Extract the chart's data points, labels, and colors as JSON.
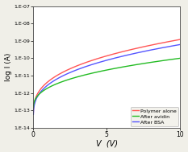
{
  "title": "",
  "xlabel": "V  (V)",
  "ylabel": "log I (A)",
  "xlim": [
    0,
    10
  ],
  "ylim_log": [
    1e-14,
    1e-07
  ],
  "yticks": [
    1e-14,
    1e-13,
    1e-12,
    1e-11,
    1e-10,
    1e-09,
    1e-08,
    1e-07
  ],
  "ytick_labels": [
    "1.E-14",
    "1.E-13",
    "1.E-12",
    "1.E-11",
    "1.E-10",
    "1.E-09",
    "1.E-08",
    "1.E-07"
  ],
  "xticks": [
    0,
    5,
    10
  ],
  "curves": {
    "polymer_alone": {
      "color": "#FF5555",
      "label": "Polymer alone",
      "I0": 5e-14,
      "n": 0.55
    },
    "after_avidin": {
      "color": "#22BB22",
      "label": "After avidin",
      "I0": 1.2e-13,
      "n": 1.2
    },
    "after_bsa": {
      "color": "#5555FF",
      "label": "After BSA",
      "I0": 4e-14,
      "n": 0.52
    }
  },
  "legend_loc": "lower right",
  "background_color": "#F0EFE8",
  "plot_bg": "#FFFFFF"
}
